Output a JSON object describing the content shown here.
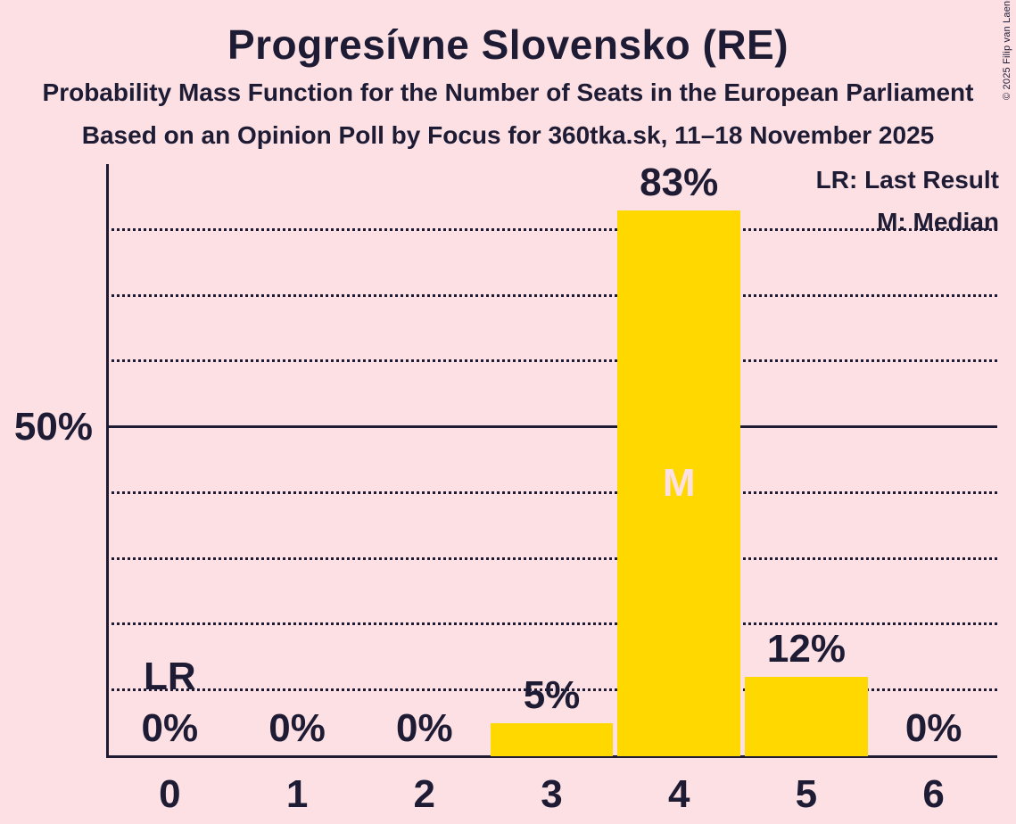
{
  "title": "Progresívne Slovensko (RE)",
  "subtitle1": "Probability Mass Function for the Number of Seats in the European Parliament",
  "subtitle2": "Based on an Opinion Poll by Focus for 360tka.sk, 11–18 November 2025",
  "copyright": "© 2025 Filip van Laenen",
  "legend": {
    "lr_label": "LR: Last Result",
    "m_label": "M: Median"
  },
  "colors": {
    "background": "#FCE0E3",
    "bar": "#FFD800",
    "text": "#1E1C35",
    "median_text": "#FCE0E3"
  },
  "chart_data": {
    "type": "bar",
    "title": "Progresívne Slovensko (RE)",
    "categories": [
      "0",
      "1",
      "2",
      "3",
      "4",
      "5",
      "6"
    ],
    "values": [
      0,
      0,
      0,
      5,
      83,
      12,
      0
    ],
    "value_labels": [
      "0%",
      "0%",
      "0%",
      "5%",
      "83%",
      "12%",
      "0%"
    ],
    "ylim": [
      0,
      90
    ],
    "y_axis_label": "50%",
    "y_axis_label_pct": 50,
    "gridlines_dotted_pct": [
      10,
      20,
      30,
      40,
      60,
      70,
      80
    ],
    "gridline_solid_pct": 50,
    "legend_position": "top-right",
    "median_seat_index": 4,
    "median_marker": "M",
    "last_result_seat_index": 0,
    "last_result_marker": "LR"
  }
}
